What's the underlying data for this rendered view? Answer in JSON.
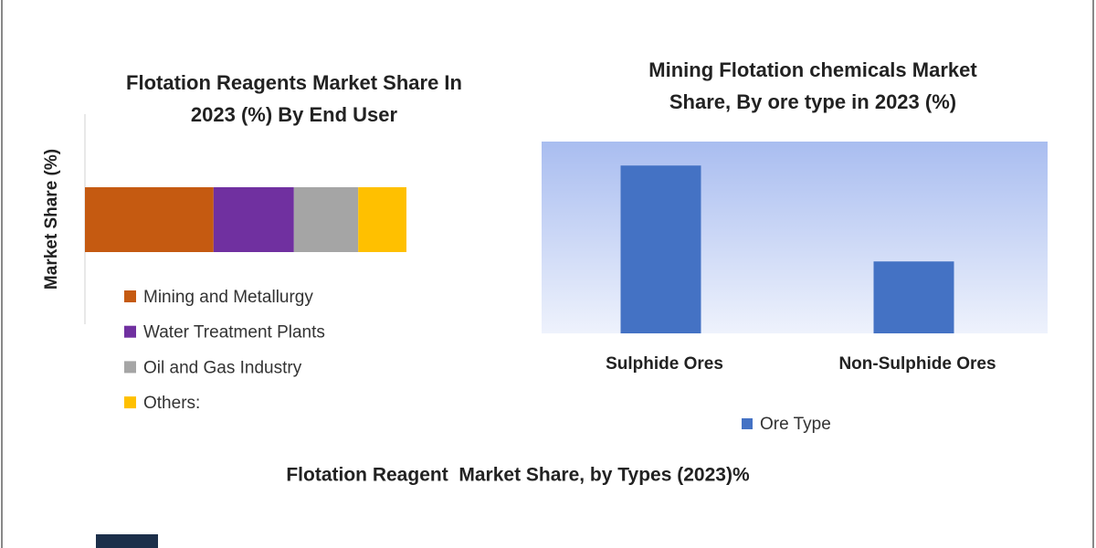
{
  "chart_data": [
    {
      "type": "stacked-bar-horizontal",
      "title": [
        "Flotation Reagents Market Share In",
        "2023 (%) By End User"
      ],
      "ylabel": "Market Share (%)",
      "categories": [
        null
      ],
      "series": [
        {
          "name": "Mining and Metallurgy",
          "color": "#c55a11",
          "values": [
            40
          ]
        },
        {
          "name": "Water Treatment Plants",
          "color": "#7030a0",
          "values": [
            25
          ]
        },
        {
          "name": "Oil and Gas Industry",
          "color": "#a5a5a5",
          "values": [
            20
          ]
        },
        {
          "name": "Others:",
          "color": "#ffc000",
          "values": [
            15
          ]
        }
      ],
      "xlim": [
        0,
        100
      ]
    },
    {
      "type": "bar",
      "title": [
        "Mining Flotation chemicals Market",
        "Share, By ore type in 2023 (%)"
      ],
      "categories": [
        "Sulphide Ores",
        "Non-Sulphide Ores"
      ],
      "series": [
        {
          "name": "Ore Type",
          "color": "#4472c4",
          "values": [
            70,
            30
          ]
        }
      ],
      "ylim": [
        0,
        80
      ]
    }
  ],
  "footer": {
    "title": "Flotation Reagent  Market Share, by Types (2023)%"
  }
}
